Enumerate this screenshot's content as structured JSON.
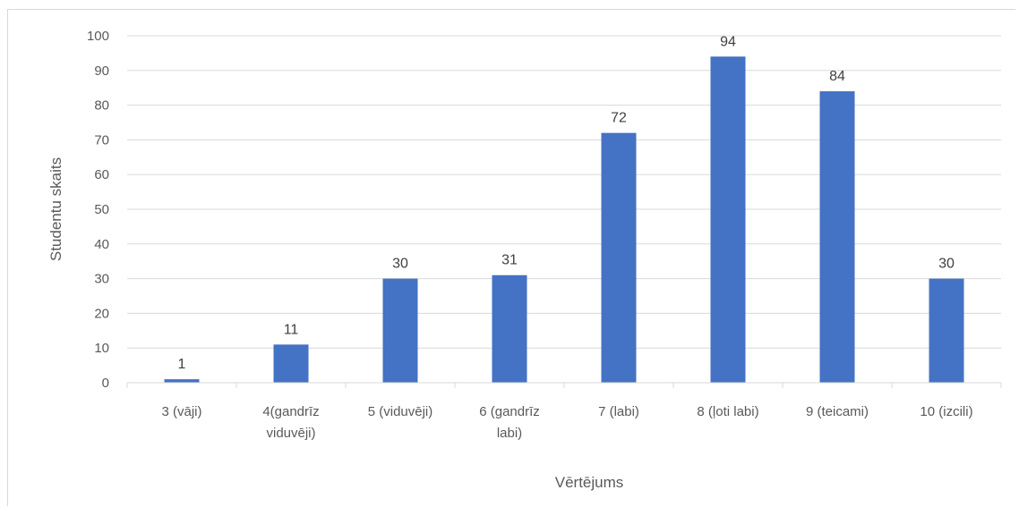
{
  "chart_data": {
    "type": "bar",
    "categories": [
      [
        "3 (vāji)"
      ],
      [
        "4(gandrīz",
        "viduvēji)"
      ],
      [
        "5 (viduvēji)"
      ],
      [
        "6 (gandrīz",
        "labi)"
      ],
      [
        "7 (labi)"
      ],
      [
        "8 (ļoti labi)"
      ],
      [
        "9 (teicami)"
      ],
      [
        "10 (izcili)"
      ]
    ],
    "values": [
      1,
      11,
      30,
      31,
      72,
      94,
      84,
      30
    ],
    "xlabel": "Vērtējums",
    "ylabel": "Studentu skaits",
    "ylim": [
      0,
      100
    ],
    "yticks": [
      0,
      10,
      20,
      30,
      40,
      50,
      60,
      70,
      80,
      90,
      100
    ],
    "grid": true,
    "data_labels": true,
    "bar_color": "#4472c4",
    "grid_color": "#d9d9d9"
  }
}
